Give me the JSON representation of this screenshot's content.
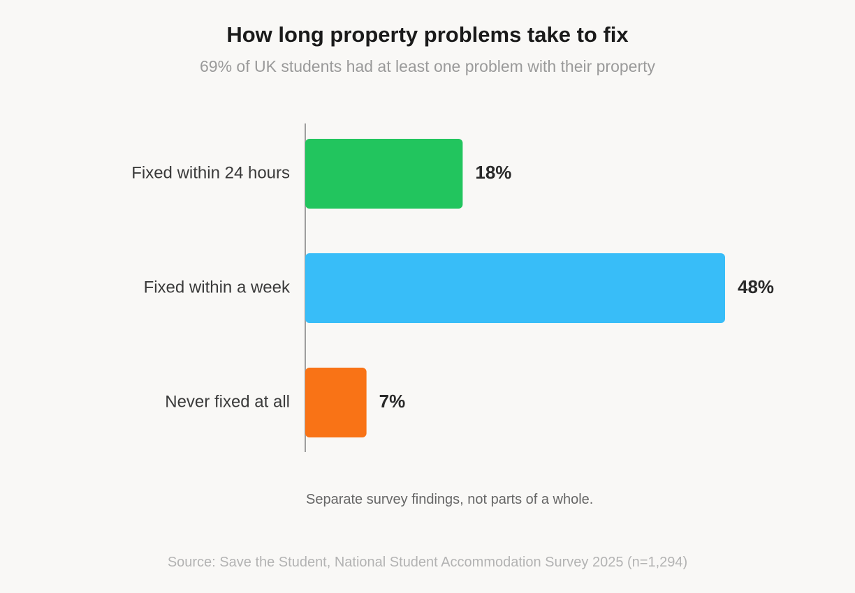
{
  "chart_data": {
    "type": "bar",
    "orientation": "horizontal",
    "title": "How long property problems take to fix",
    "subtitle": "69% of UK students had at least one problem with their property",
    "categories": [
      "Fixed within 24 hours",
      "Fixed within a week",
      "Never fixed at all"
    ],
    "values": [
      18,
      48,
      7
    ],
    "value_labels": [
      "18%",
      "48%",
      "7%"
    ],
    "colors": [
      "#22c55e",
      "#38bdf8",
      "#f97316"
    ],
    "xlim": [
      0,
      48
    ],
    "grid": false,
    "note": "Separate survey findings, not parts of a whole.",
    "source": "Source: Save the Student, National Student Accommodation Survey 2025 (n=1,294)"
  }
}
